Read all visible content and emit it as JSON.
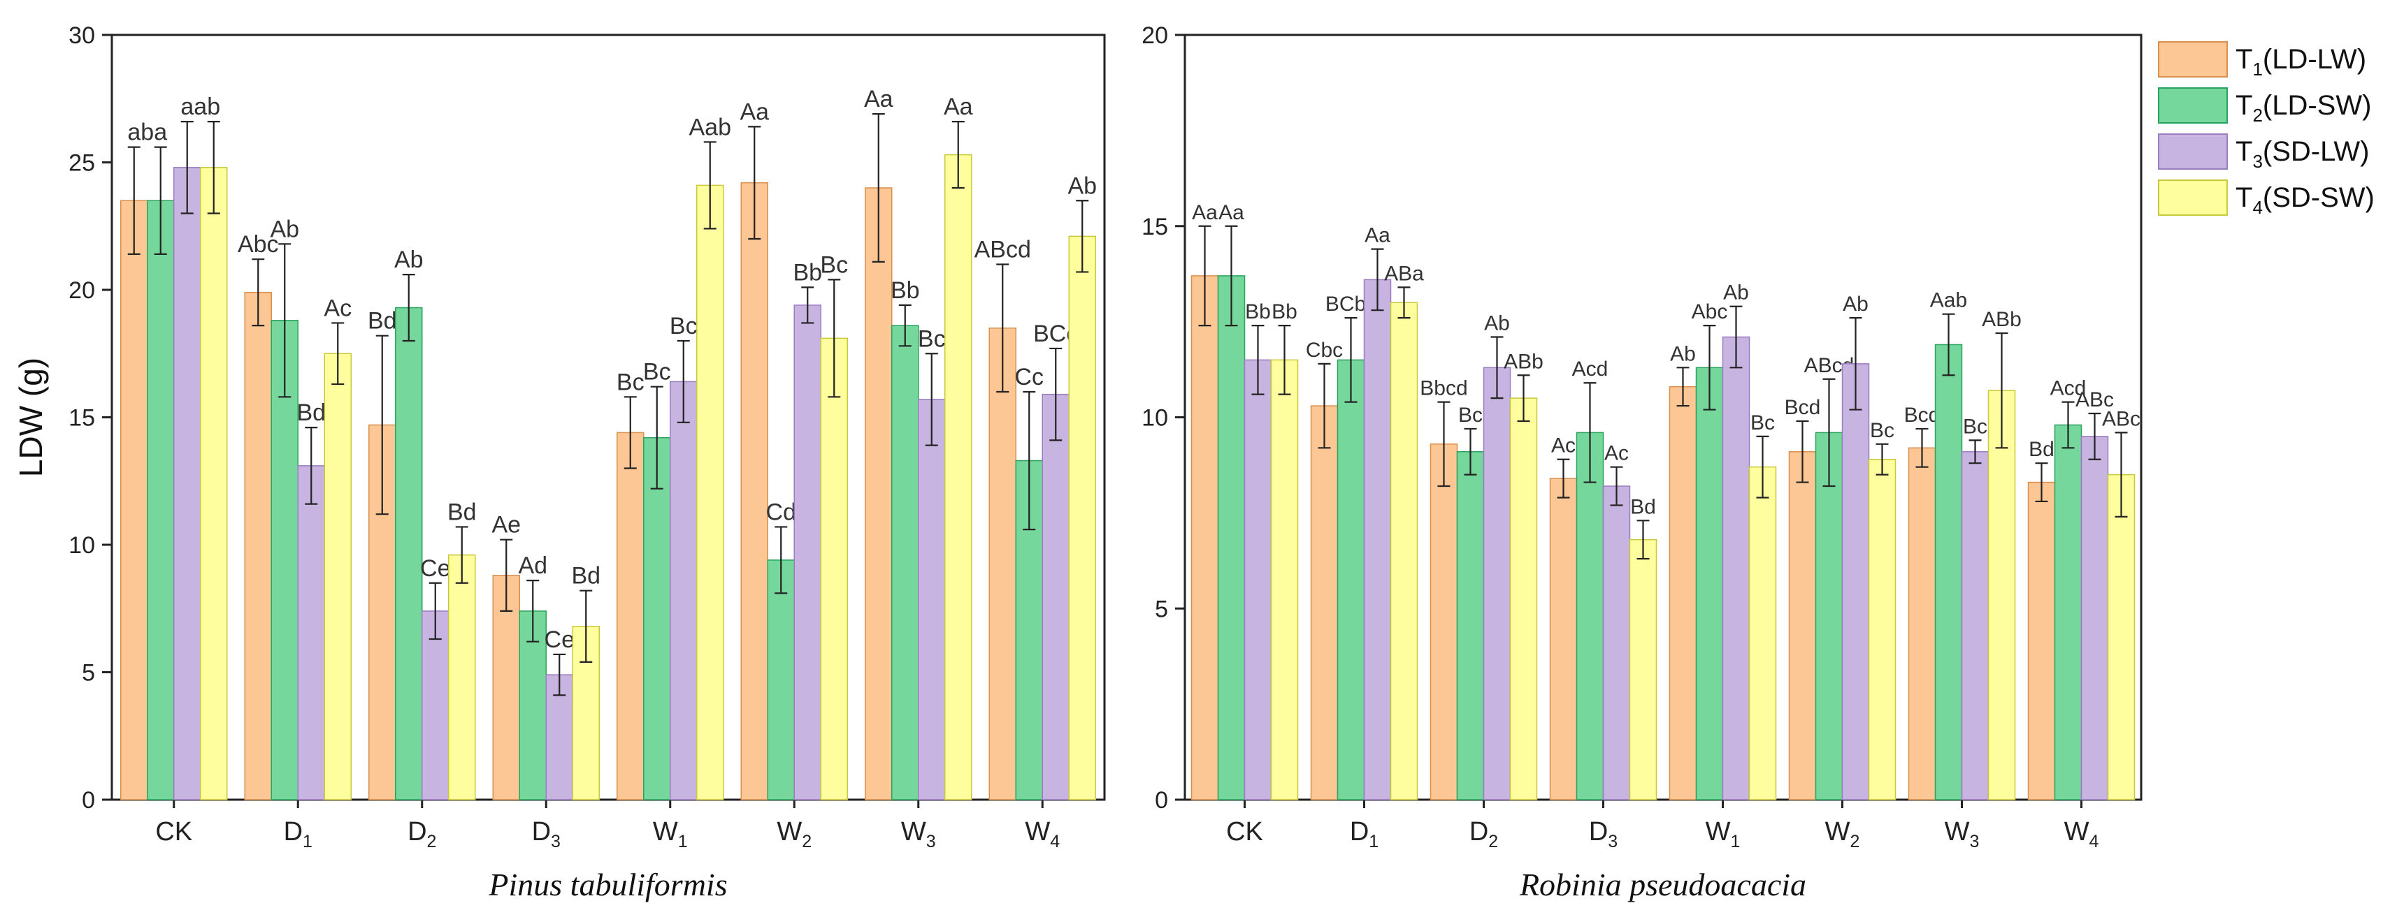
{
  "legend": {
    "entries": [
      {
        "base": "T",
        "sub": "1",
        "rest": "(LD-LW)"
      },
      {
        "base": "T",
        "sub": "2",
        "rest": "(LD-SW)"
      },
      {
        "base": "T",
        "sub": "3",
        "rest": "(SD-LW)"
      },
      {
        "base": "T",
        "sub": "4",
        "rest": "(SD-SW)"
      }
    ]
  },
  "colors": {
    "fills": [
      "#fcc695",
      "#76d79c",
      "#c8b4e0",
      "#fefe9e"
    ],
    "strokes": [
      "#d9904c",
      "#2aa35e",
      "#9a7dc0",
      "#c9c83a"
    ],
    "edge": "#555555"
  },
  "chart_data": [
    {
      "type": "bar",
      "species": "Pinus tabuliformis",
      "ylabel": "LDW (g)",
      "ylim": [
        0,
        30
      ],
      "yticks": [
        0,
        5,
        10,
        15,
        20,
        25,
        30
      ],
      "categories": [
        {
          "base": "CK",
          "sub": ""
        },
        {
          "base": "D",
          "sub": "1"
        },
        {
          "base": "D",
          "sub": "2"
        },
        {
          "base": "D",
          "sub": "3"
        },
        {
          "base": "W",
          "sub": "1"
        },
        {
          "base": "W",
          "sub": "2"
        },
        {
          "base": "W",
          "sub": "3"
        },
        {
          "base": "W",
          "sub": "4"
        }
      ],
      "series": [
        {
          "name": "T1(LD-LW)",
          "values": [
            23.5,
            19.9,
            14.7,
            8.8,
            14.4,
            24.2,
            24.0,
            18.5
          ],
          "errors": [
            2.1,
            1.3,
            3.5,
            1.4,
            1.4,
            2.2,
            2.9,
            2.5
          ],
          "labels": [
            "aba",
            "Abc",
            "Bd",
            "Ae",
            "Bc",
            "Aa",
            "Aa",
            "ABcd"
          ]
        },
        {
          "name": "T2(LD-SW)",
          "values": [
            23.5,
            18.8,
            19.3,
            7.4,
            14.2,
            9.4,
            18.6,
            13.3
          ],
          "errors": [
            2.1,
            3.0,
            1.3,
            1.2,
            2.0,
            1.3,
            0.8,
            2.7
          ],
          "labels": [
            "",
            "Ab",
            "Ab",
            "Ad",
            "Bc",
            "Cd",
            "Bb",
            "Cc"
          ]
        },
        {
          "name": "T3(SD-LW)",
          "values": [
            24.8,
            13.1,
            7.4,
            4.9,
            16.4,
            19.4,
            15.7,
            15.9
          ],
          "errors": [
            1.8,
            1.5,
            1.1,
            0.8,
            1.6,
            0.7,
            1.8,
            1.8
          ],
          "labels": [
            "aab",
            "Bd",
            "Ce",
            "Ce",
            "Bc",
            "Bb",
            "Bc",
            "BCc"
          ]
        },
        {
          "name": "T4(SD-SW)",
          "values": [
            24.8,
            17.5,
            9.6,
            6.8,
            24.1,
            18.1,
            25.3,
            22.1
          ],
          "errors": [
            1.8,
            1.2,
            1.1,
            1.4,
            1.7,
            2.3,
            1.3,
            1.4
          ],
          "labels": [
            "",
            "Ac",
            "Bd",
            "Bd",
            "Aab",
            "Bc",
            "Aa",
            "Ab"
          ]
        }
      ]
    },
    {
      "type": "bar",
      "species": "Robinia pseudoacacia",
      "ylabel": "",
      "ylim": [
        0,
        20
      ],
      "yticks": [
        0,
        5,
        10,
        15,
        20
      ],
      "categories": [
        {
          "base": "CK",
          "sub": ""
        },
        {
          "base": "D",
          "sub": "1"
        },
        {
          "base": "D",
          "sub": "2"
        },
        {
          "base": "D",
          "sub": "3"
        },
        {
          "base": "W",
          "sub": "1"
        },
        {
          "base": "W",
          "sub": "2"
        },
        {
          "base": "W",
          "sub": "3"
        },
        {
          "base": "W",
          "sub": "4"
        }
      ],
      "series": [
        {
          "name": "T1(LD-LW)",
          "values": [
            13.7,
            10.3,
            9.3,
            8.4,
            10.8,
            9.1,
            9.2,
            8.3
          ],
          "errors": [
            1.3,
            1.1,
            1.1,
            0.5,
            0.5,
            0.8,
            0.5,
            0.5
          ],
          "labels": [
            "Aa",
            "Cbc",
            "Bbcd",
            "Ac",
            "Ab",
            "Bcd",
            "Bcd",
            "Bd"
          ]
        },
        {
          "name": "T2(LD-SW)",
          "values": [
            13.7,
            11.5,
            9.1,
            9.6,
            11.3,
            9.6,
            11.9,
            9.8
          ],
          "errors": [
            1.3,
            1.1,
            0.6,
            1.3,
            1.1,
            1.4,
            0.8,
            0.6
          ],
          "labels": [
            "Aa",
            "BCbc",
            "Bc",
            "Acd",
            "Abc",
            "ABcd",
            "Aab",
            "Acd"
          ]
        },
        {
          "name": "T3(SD-LW)",
          "values": [
            11.5,
            13.6,
            11.3,
            8.2,
            12.1,
            11.4,
            9.1,
            9.5
          ],
          "errors": [
            0.9,
            0.8,
            0.8,
            0.5,
            0.8,
            1.2,
            0.3,
            0.6
          ],
          "labels": [
            "Bb",
            "Aa",
            "Ab",
            "Ac",
            "Ab",
            "Ab",
            "Bc",
            "ABc"
          ]
        },
        {
          "name": "T4(SD-SW)",
          "values": [
            11.5,
            13.0,
            10.5,
            6.8,
            8.7,
            8.9,
            10.7,
            8.5
          ],
          "errors": [
            0.9,
            0.4,
            0.6,
            0.5,
            0.8,
            0.4,
            1.5,
            1.1
          ],
          "labels": [
            "Bb",
            "ABa",
            "ABb",
            "Bd",
            "Bc",
            "Bc",
            "ABb",
            "ABc"
          ]
        }
      ]
    }
  ]
}
